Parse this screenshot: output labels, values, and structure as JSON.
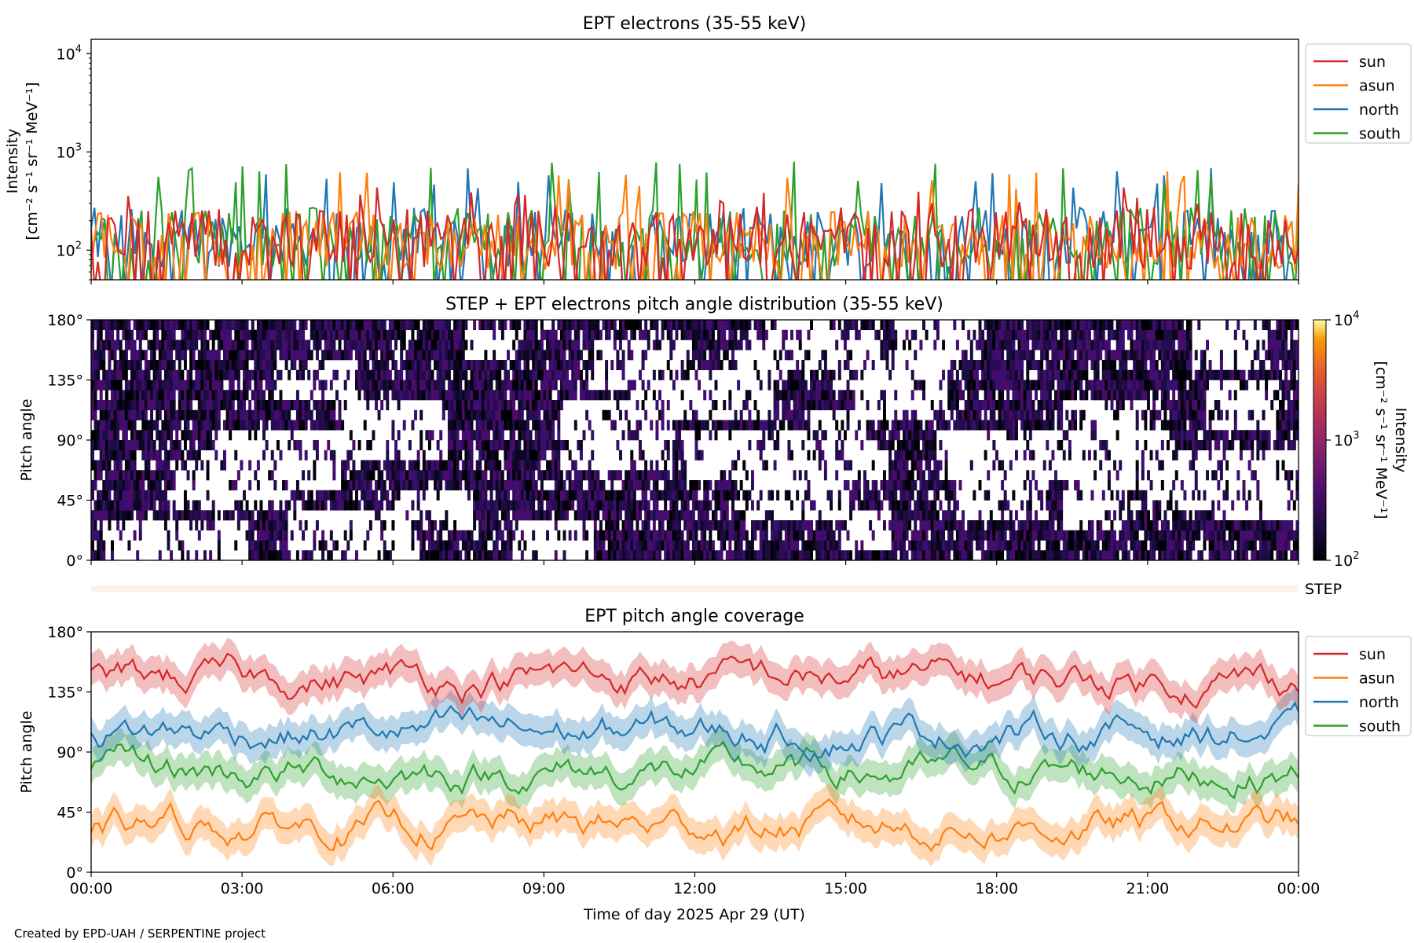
{
  "credit": "Created by EPD-UAH / SERPENTINE project",
  "colors": {
    "sun": "#d62728",
    "asun": "#ff7f0e",
    "north": "#1f77b4",
    "south": "#2ca02c"
  },
  "chart_data": [
    {
      "type": "line",
      "title": "EPT electrons (35-55 keV)",
      "ylabel": "Intensity",
      "yunit": "[cm⁻² s⁻¹ sr⁻¹ MeV⁻¹]",
      "yscale": "log",
      "ylim": [
        50,
        14000
      ],
      "yticks": [
        {
          "base": "10",
          "exp": "2",
          "value": 100
        },
        {
          "base": "10",
          "exp": "3",
          "value": 1000
        },
        {
          "base": "10",
          "exp": "4",
          "value": 10000
        }
      ],
      "legend": "outside-right",
      "series": [
        {
          "name": "sun",
          "color": "#d62728",
          "baseline": 130,
          "peak": 450
        },
        {
          "name": "asun",
          "color": "#ff7f0e",
          "baseline": 125,
          "peak": 650
        },
        {
          "name": "north",
          "color": "#1f77b4",
          "baseline": 135,
          "peak": 700
        },
        {
          "name": "south",
          "color": "#2ca02c",
          "baseline": 135,
          "peak": 800
        }
      ]
    },
    {
      "type": "heatmap",
      "title": "STEP + EPT electrons pitch angle distribution (35-55 keV)",
      "ylabel": "Pitch angle",
      "ylim": [
        0,
        180
      ],
      "yticks": [
        "0°",
        "45°",
        "90°",
        "135°",
        "180°"
      ],
      "colorbar": {
        "label": "Intensity",
        "unit": "[cm⁻² s⁻¹ sr⁻¹ MeV⁻¹]",
        "scale": "log",
        "range": [
          100,
          10000
        ],
        "ticks": [
          {
            "base": "10",
            "exp": "2",
            "value": 100
          },
          {
            "base": "10",
            "exp": "3",
            "value": 1000
          },
          {
            "base": "10",
            "exp": "4",
            "value": 10000
          }
        ]
      },
      "step_label": "STEP"
    },
    {
      "type": "line",
      "title": "EPT pitch angle coverage",
      "ylabel": "Pitch angle",
      "xlabel": "Time of day 2025 Apr 29 (UT)",
      "ylim": [
        0,
        180
      ],
      "yticks": [
        "0°",
        "45°",
        "90°",
        "135°",
        "180°"
      ],
      "xlim": [
        "00:00",
        "24:00"
      ],
      "xticks": [
        "00:00",
        "03:00",
        "06:00",
        "09:00",
        "12:00",
        "15:00",
        "18:00",
        "21:00",
        "00:00"
      ],
      "legend": "outside-right",
      "series": [
        {
          "name": "sun",
          "color": "#d62728",
          "approx_mean_deg": 145,
          "band_halfwidth_deg": 12
        },
        {
          "name": "asun",
          "color": "#ff7f0e",
          "approx_mean_deg": 35,
          "band_halfwidth_deg": 12
        },
        {
          "name": "north",
          "color": "#1f77b4",
          "approx_mean_deg": 105,
          "band_halfwidth_deg": 12
        },
        {
          "name": "south",
          "color": "#2ca02c",
          "approx_mean_deg": 75,
          "band_halfwidth_deg": 12
        }
      ]
    }
  ]
}
